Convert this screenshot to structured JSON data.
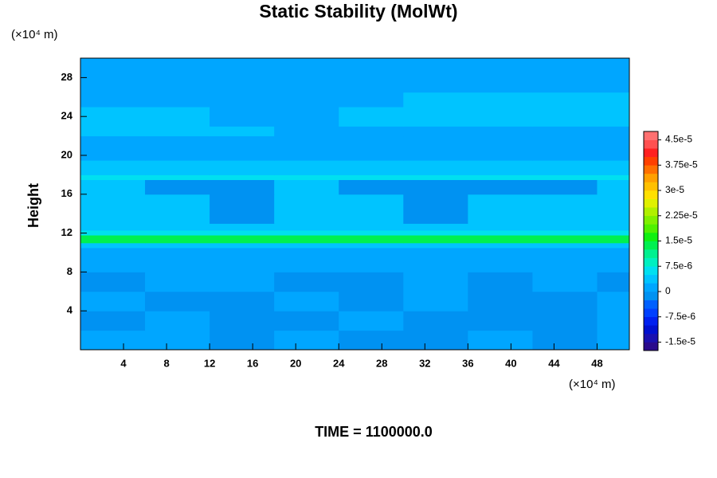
{
  "chart_data": {
    "type": "contour",
    "title": "Static Stability (MolWt)",
    "y_label": "Height",
    "x_unit": "(×10⁴ m)",
    "y_unit": "(×10⁴ m)",
    "footer": "TIME = 1100000.0",
    "xlim": [
      0,
      51
    ],
    "ylim": [
      0,
      30
    ],
    "xticks": [
      4,
      8,
      12,
      16,
      20,
      24,
      28,
      32,
      36,
      40,
      44,
      48
    ],
    "yticks": [
      4,
      8,
      12,
      16,
      20,
      24,
      28
    ],
    "x_edges": [
      0,
      6,
      12,
      18,
      24,
      30,
      36,
      42,
      48,
      51
    ],
    "y_edges": [
      0,
      2,
      4,
      6,
      8,
      9,
      10.5,
      11,
      11.8,
      12.3,
      13,
      16,
      17.5,
      18,
      19.5,
      22,
      23,
      25,
      26.5,
      30
    ],
    "z": [
      [
        1e-06,
        1e-06,
        -1e-06,
        1e-06,
        -1e-06,
        -1e-06,
        1e-06,
        -1e-06,
        1e-06
      ],
      [
        -1e-06,
        1e-06,
        -1e-06,
        -1e-06,
        1e-06,
        -1e-06,
        -1e-06,
        -1e-06,
        1e-06
      ],
      [
        1e-06,
        -1e-06,
        -1e-06,
        1e-06,
        -1e-06,
        1e-06,
        -1e-06,
        -1e-06,
        1e-06
      ],
      [
        -1e-06,
        1e-06,
        1e-06,
        -1e-06,
        -1e-06,
        1e-06,
        -1e-06,
        1e-06,
        -1e-06
      ],
      [
        1e-06,
        1e-06,
        1e-06,
        1e-06,
        1e-06,
        1e-06,
        1e-06,
        1e-06,
        1e-06
      ],
      [
        1e-06,
        1e-06,
        1e-06,
        1e-06,
        1e-06,
        1e-06,
        1e-06,
        1e-06,
        1e-06
      ],
      [
        4e-06,
        4e-06,
        4e-06,
        4e-06,
        4e-06,
        4e-06,
        4e-06,
        4e-06,
        4e-06
      ],
      [
        1.5e-05,
        1.5e-05,
        1.5e-05,
        1.5e-05,
        1.5e-05,
        1.5e-05,
        1.5e-05,
        1.5e-05,
        1.5e-05
      ],
      [
        7e-06,
        7e-06,
        7e-06,
        7e-06,
        7e-06,
        7e-06,
        7e-06,
        7e-06,
        7e-06
      ],
      [
        4e-06,
        4e-06,
        4e-06,
        4e-06,
        4e-06,
        4e-06,
        4e-06,
        4e-06,
        4e-06
      ],
      [
        4e-06,
        4e-06,
        -1e-06,
        4e-06,
        4e-06,
        -1e-06,
        4e-06,
        4e-06,
        4e-06
      ],
      [
        4e-06,
        -1e-06,
        -1e-06,
        4e-06,
        -1e-06,
        -1e-06,
        -1e-06,
        -1e-06,
        4e-06
      ],
      [
        7e-06,
        7e-06,
        7e-06,
        7e-06,
        7e-06,
        7e-06,
        7e-06,
        7e-06,
        7e-06
      ],
      [
        4e-06,
        4e-06,
        4e-06,
        4e-06,
        4e-06,
        4e-06,
        4e-06,
        4e-06,
        4e-06
      ],
      [
        1e-06,
        1e-06,
        1e-06,
        1e-06,
        1e-06,
        1e-06,
        1e-06,
        1e-06,
        1e-06
      ],
      [
        4e-06,
        4e-06,
        4e-06,
        1e-06,
        1e-06,
        1e-06,
        1e-06,
        1e-06,
        1e-06
      ],
      [
        4e-06,
        4e-06,
        1e-06,
        1e-06,
        4e-06,
        4e-06,
        4e-06,
        4e-06,
        4e-06
      ],
      [
        1e-06,
        1e-06,
        1e-06,
        1e-06,
        1e-06,
        4e-06,
        4e-06,
        4e-06,
        4e-06
      ],
      [
        1e-06,
        1e-06,
        1e-06,
        1e-06,
        1e-06,
        1e-06,
        1e-06,
        1e-06,
        1e-06
      ]
    ],
    "colorbar_lim": [
      -1.75e-05,
      4.75e-05
    ],
    "colorbar_ticks": [
      {
        "value": 4.5e-05,
        "label": "4.5e-5"
      },
      {
        "value": 3.75e-05,
        "label": "3.75e-5"
      },
      {
        "value": 3e-05,
        "label": "3e-5"
      },
      {
        "value": 2.25e-05,
        "label": "2.25e-5"
      },
      {
        "value": 1.5e-05,
        "label": "1.5e-5"
      },
      {
        "value": 7.5e-06,
        "label": "7.5e-6"
      },
      0,
      {
        "value": -7.5e-06,
        "label": "-7.5e-6"
      },
      {
        "value": -1.5e-05,
        "label": "-1.5e-5"
      }
    ],
    "colors": [
      "#2a0a8c",
      "#1a10b0",
      "#0010d0",
      "#0020f0",
      "#0040ff",
      "#0060ff",
      "#0092f2",
      "#00a6ff",
      "#00c4ff",
      "#00e0f0",
      "#00f0c0",
      "#00f090",
      "#00f050",
      "#10f010",
      "#50f000",
      "#80f000",
      "#b0f000",
      "#e0f000",
      "#ffe000",
      "#ffc000",
      "#ffa000",
      "#ff7000",
      "#ff4000",
      "#ff2020",
      "#ff5050",
      "#ff7070"
    ]
  }
}
